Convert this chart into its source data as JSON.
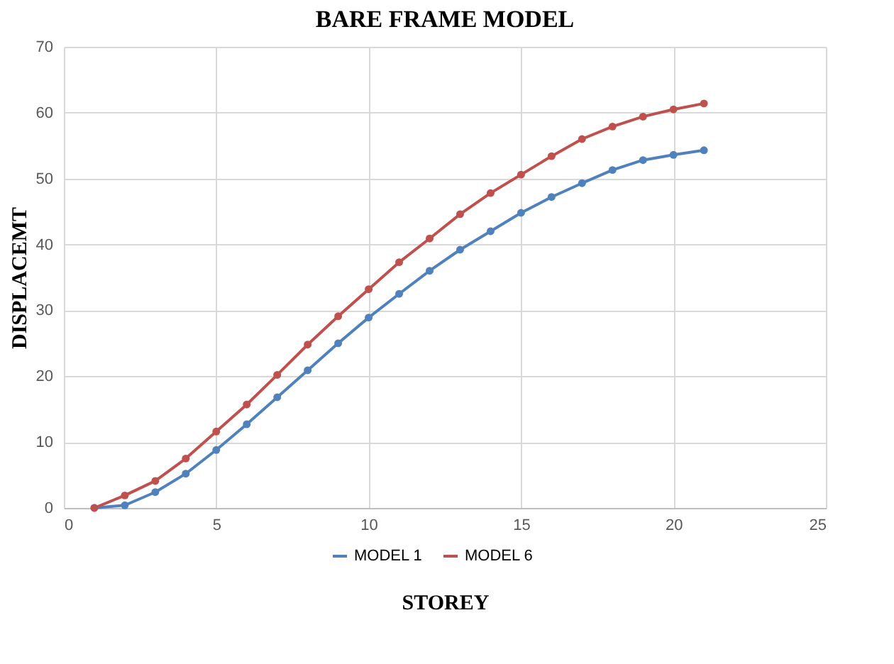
{
  "chart_data": {
    "type": "line",
    "title": "BARE FRAME MODEL",
    "xlabel": "STOREY",
    "ylabel": "DISPLACEMT",
    "x": [
      1,
      2,
      3,
      4,
      5,
      6,
      7,
      8,
      9,
      10,
      11,
      12,
      13,
      14,
      15,
      16,
      17,
      18,
      19,
      20,
      21
    ],
    "series": [
      {
        "name": "MODEL 1",
        "color": "#4f81bd",
        "values": [
          0,
          0.4,
          2.4,
          5.2,
          8.8,
          12.7,
          16.8,
          20.9,
          25.0,
          28.9,
          32.5,
          36.0,
          39.2,
          42.0,
          44.8,
          47.2,
          49.3,
          51.3,
          52.8,
          53.6,
          54.3
        ]
      },
      {
        "name": "MODEL 6",
        "color": "#c0504d",
        "values": [
          0,
          1.9,
          4.1,
          7.5,
          11.6,
          15.7,
          20.2,
          24.8,
          29.1,
          33.2,
          37.3,
          40.9,
          44.6,
          47.8,
          50.6,
          53.4,
          56.0,
          57.9,
          59.4,
          60.5,
          61.4
        ]
      }
    ],
    "xlim": [
      0,
      25
    ],
    "xticks": [
      0,
      5,
      10,
      15,
      20,
      25
    ],
    "ylim": [
      0,
      70
    ],
    "yticks": [
      0,
      10,
      20,
      30,
      40,
      50,
      60,
      70
    ],
    "grid": true,
    "legend": "bottom",
    "marker": "circle",
    "line_style": "solid"
  }
}
